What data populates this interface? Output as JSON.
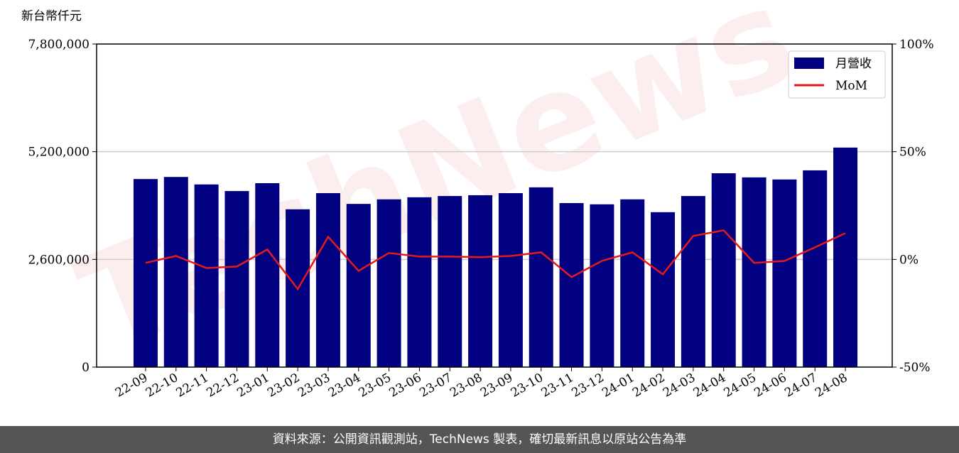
{
  "chart_data": {
    "type": "bar-line",
    "y_label": "新台幣仟元",
    "watermark": "TechNews",
    "categories": [
      "22-09",
      "22-10",
      "22-11",
      "22-12",
      "23-01",
      "23-02",
      "23-03",
      "23-04",
      "23-05",
      "23-06",
      "23-07",
      "23-08",
      "23-09",
      "23-10",
      "23-11",
      "23-12",
      "24-01",
      "24-02",
      "24-03",
      "24-04",
      "24-05",
      "24-06",
      "24-07",
      "24-08"
    ],
    "series": [
      {
        "name": "月營收",
        "color": "#000080",
        "kind": "bar",
        "values": [
          4540000,
          4590000,
          4410000,
          4250000,
          4440000,
          3810000,
          4200000,
          3940000,
          4050000,
          4100000,
          4130000,
          4150000,
          4200000,
          4340000,
          3960000,
          3930000,
          4050000,
          3740000,
          4130000,
          4680000,
          4580000,
          4530000,
          4750000,
          5300000
        ]
      },
      {
        "name": "MoM",
        "color": "#e31a1c",
        "kind": "line",
        "axis": "y2",
        "values": [
          -1.6,
          1.6,
          -4,
          -3.3,
          4.6,
          -13.8,
          10.5,
          -5.3,
          3,
          1.3,
          1.3,
          1,
          1.6,
          3.3,
          -8.2,
          -0.7,
          3.3,
          -6.9,
          10.9,
          13.5,
          -1.6,
          -0.7,
          5.6,
          12.2
        ]
      }
    ],
    "ylim": [
      0,
      7800000
    ],
    "yticks": [
      0,
      {
        "value": 2600000,
        "label": "2,600,000"
      },
      {
        "value": 5200000,
        "label": "5,200,000"
      },
      {
        "value": 7800000,
        "label": "7,800,000"
      }
    ],
    "y2lim": [
      -50,
      100
    ],
    "y2ticks": [
      {
        "value": -50,
        "label": "-50%"
      },
      {
        "value": 0,
        "label": "0%"
      },
      {
        "value": 50,
        "label": "50%"
      },
      {
        "value": 100,
        "label": "100%"
      }
    ],
    "grid": true,
    "legend": "upper right"
  },
  "footer": "資料來源：公開資訊觀測站，TechNews 製表，確切最新訊息以原站公告為準"
}
